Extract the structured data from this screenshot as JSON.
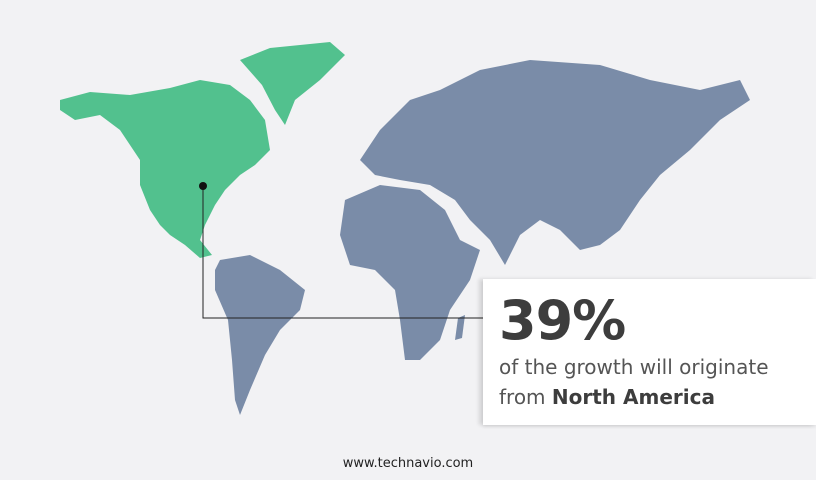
{
  "colors": {
    "highlight_region": "#52c18e",
    "other_regions": "#7a8ca8",
    "background": "#f2f2f4"
  },
  "highlighted_region": "North America",
  "callout": {
    "percent": "39%",
    "text": "of the growth will originate",
    "prefix": "from",
    "region": "North America"
  },
  "footer": "www.technavio.com"
}
